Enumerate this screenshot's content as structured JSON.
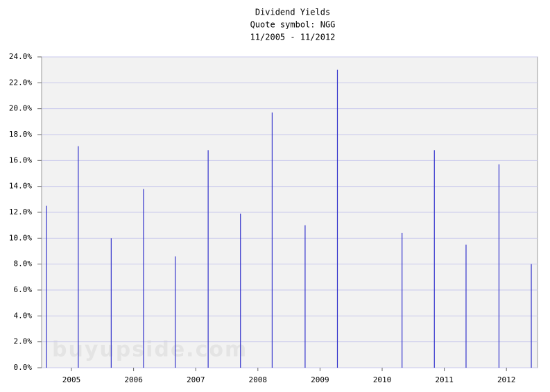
{
  "chart_data": {
    "type": "spike",
    "title": "Dividend Yields",
    "subtitle": "Quote symbol: NGG",
    "period": "11/2005 - 11/2012",
    "watermark": "buyupside.com",
    "x": [
      2004.6,
      2005.11,
      2005.64,
      2006.16,
      2006.67,
      2007.2,
      2007.72,
      2008.23,
      2008.76,
      2009.28,
      2010.32,
      2010.84,
      2011.35,
      2011.88,
      2012.4
    ],
    "values": [
      12.5,
      17.1,
      10.0,
      13.8,
      8.6,
      16.8,
      11.9,
      19.7,
      11.0,
      23.0,
      10.4,
      16.8,
      9.5,
      15.7,
      8.0
    ],
    "color": "#3333cc",
    "xlim": [
      2004.52,
      2012.5
    ],
    "xticks": [
      2005,
      2006,
      2007,
      2008,
      2009,
      2010,
      2011,
      2012
    ],
    "ylim": [
      0,
      24
    ],
    "yticks": [
      {
        "value": 0,
        "label": "0.0%"
      },
      {
        "value": 2,
        "label": "2.0%"
      },
      {
        "value": 4,
        "label": "4.0%"
      },
      {
        "value": 6,
        "label": "6.0%"
      },
      {
        "value": 8,
        "label": "8.0%"
      },
      {
        "value": 10,
        "label": "10.0%"
      },
      {
        "value": 12,
        "label": "12.0%"
      },
      {
        "value": 14,
        "label": "14.0%"
      },
      {
        "value": 16,
        "label": "16.0%"
      },
      {
        "value": 18,
        "label": "18.0%"
      },
      {
        "value": 20,
        "label": "20.0%"
      },
      {
        "value": 22,
        "label": "22.0%"
      },
      {
        "value": 24,
        "label": "24.0%"
      }
    ],
    "grid": true
  }
}
